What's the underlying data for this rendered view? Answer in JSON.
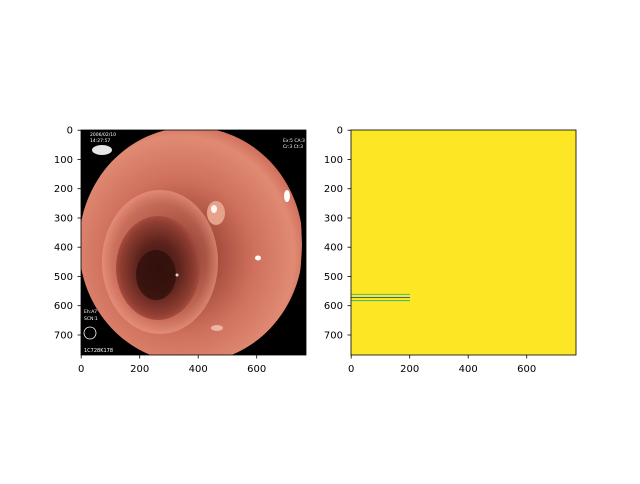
{
  "figure": {
    "background": "#ffffff",
    "panels": [
      {
        "kind": "endoscopy-photo",
        "xticks": [
          "0",
          "200",
          "400",
          "600"
        ],
        "yticks": [
          "0",
          "100",
          "200",
          "300",
          "400",
          "500",
          "600",
          "700"
        ],
        "overlay_text": [
          "2006/02/10",
          "14:27:57",
          "Ex:5 CA:3",
          "Cr:3 Ct:3",
          "Eh:A7",
          "SCN:1",
          "1C728K178"
        ]
      },
      {
        "kind": "segmentation-mask",
        "xticks": [
          "0",
          "200",
          "400",
          "600"
        ],
        "yticks": [
          "0",
          "100",
          "200",
          "300",
          "400",
          "500",
          "600",
          "700"
        ],
        "mask_color": "#fde725",
        "line_colors": [
          "#35b779",
          "#31688e",
          "#35b779"
        ]
      }
    ]
  }
}
